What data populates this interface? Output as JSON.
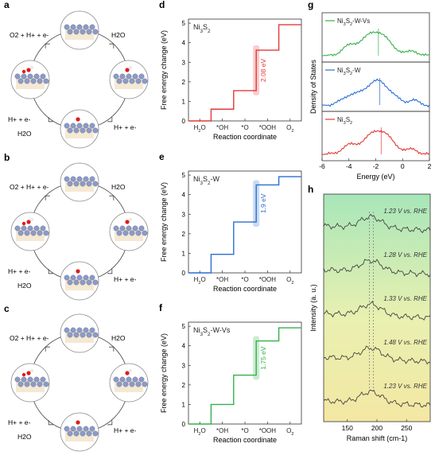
{
  "panel_letters": {
    "a": "a",
    "b": "b",
    "c": "c",
    "d": "d",
    "e": "e",
    "f": "f",
    "g": "g",
    "h": "h"
  },
  "cycle_labels": {
    "top_left": "O2 + H+ + e-",
    "top_right": "H2O",
    "bottom_left_upper": "H+ + e-",
    "bottom_left_lower": "H2O",
    "bottom_right": "H+ + e-"
  },
  "chart_data": [
    {
      "type": "line",
      "panel": "d",
      "label": "Ni3S2",
      "xlabel": "Reaction coordinate",
      "ylabel": "Free energy change (eV)",
      "categories": [
        "H2O",
        "*OH",
        "*O",
        "*OOH",
        "O2"
      ],
      "values": [
        0,
        0.6,
        1.55,
        3.62,
        4.92
      ],
      "ylim": [
        0,
        5
      ],
      "annotation": "2.08 eV",
      "color": "#e23a3a"
    },
    {
      "type": "line",
      "panel": "e",
      "label": "Ni3S2-W",
      "xlabel": "Reaction coordinate",
      "ylabel": "Free energy change (eV)",
      "categories": [
        "H2O",
        "*OH",
        "*O",
        "*OOH",
        "O2"
      ],
      "values": [
        0,
        0.95,
        2.6,
        4.5,
        4.92
      ],
      "ylim": [
        0,
        5
      ],
      "annotation": "1.9 eV",
      "color": "#2a6fd0"
    },
    {
      "type": "line",
      "panel": "f",
      "label": "Ni3S2-W-Vs",
      "xlabel": "Reaction coordinate",
      "ylabel": "Free energy change (eV)",
      "categories": [
        "H2O",
        "*OH",
        "*O",
        "*OOH",
        "O2"
      ],
      "values": [
        0,
        1.0,
        2.5,
        4.25,
        4.92
      ],
      "ylim": [
        0,
        5
      ],
      "annotation": "1.75 eV",
      "color": "#35b04a"
    },
    {
      "type": "line",
      "panel": "g",
      "xlabel": "Energy (eV)",
      "ylabel": "Density of States",
      "xlim": [
        -6,
        2
      ],
      "xticks": [
        -6,
        -4,
        -2,
        0,
        2
      ],
      "series": [
        {
          "name": "Ni3S2-W-Vs",
          "color": "#35b04a",
          "marker": -1.8
        },
        {
          "name": "Ni3S2-W",
          "color": "#2a6fd0",
          "marker": -1.7
        },
        {
          "name": "Ni3S2",
          "color": "#e23a3a",
          "marker": -1.6
        }
      ]
    },
    {
      "type": "line",
      "panel": "h",
      "xlabel": "Raman shift (cm-1)",
      "ylabel": "Intensity (a. u.)",
      "xlim": [
        110,
        290
      ],
      "xticks": [
        150,
        200,
        250
      ],
      "series": [
        {
          "name": "1.23 V vs. RHE"
        },
        {
          "name": "1.28 V vs. RHE"
        },
        {
          "name": "1.33 V vs. RHE"
        },
        {
          "name": "1.48 V vs. RHE"
        },
        {
          "name": "1.23 V vs. RHE"
        }
      ]
    }
  ]
}
